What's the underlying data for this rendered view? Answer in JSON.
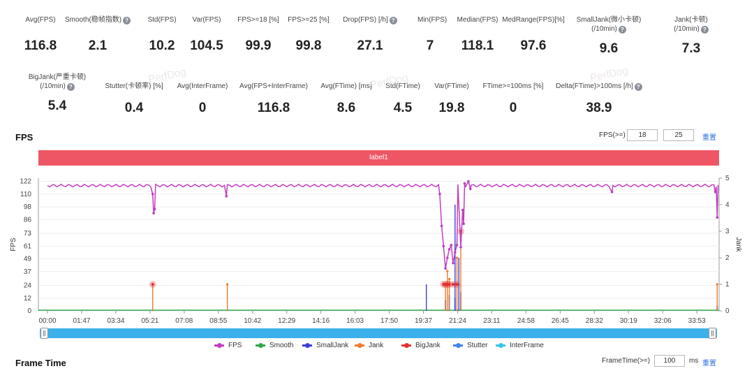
{
  "stats_row1": [
    {
      "label": "Avg(FPS)",
      "value": "116.8",
      "help": false
    },
    {
      "label": "Smooth(稳帧指数)",
      "value": "2.1",
      "help": true
    },
    {
      "label": "Std(FPS)",
      "value": "10.2",
      "help": false
    },
    {
      "label": "Var(FPS)",
      "value": "104.5",
      "help": false
    },
    {
      "label": "FPS>=18 [%]",
      "value": "99.9",
      "help": false
    },
    {
      "label": "FPS>=25 [%]",
      "value": "99.8",
      "help": false
    },
    {
      "label": "Drop(FPS) [/h]",
      "value": "27.1",
      "help": true
    },
    {
      "label": "Min(FPS)",
      "value": "7",
      "help": false
    },
    {
      "label": "Median(FPS)",
      "value": "118.1",
      "help": false
    },
    {
      "label": "MedRange(FPS)[%]",
      "value": "97.6",
      "help": false
    },
    {
      "label": "SmallJank(微小卡顿)",
      "label2": "(/10min)",
      "value": "9.6",
      "help": true
    },
    {
      "label": "Jank(卡顿)",
      "label2": "(/10min)",
      "value": "7.3",
      "help": true
    }
  ],
  "stats_row2": [
    {
      "label": "BigJank(严重卡顿)",
      "label2": "(/10min)",
      "value": "5.4",
      "help": true
    },
    {
      "label": "Stutter(卡顿率) [%]",
      "value": "0.4",
      "help": false
    },
    {
      "label": "Avg(InterFrame)",
      "value": "0",
      "help": false
    },
    {
      "label": "Avg(FPS+InterFrame)",
      "value": "116.8",
      "help": false
    },
    {
      "label": "Avg(FTime) [ms]",
      "value": "8.6",
      "help": false
    },
    {
      "label": "Std(FTime)",
      "value": "4.5",
      "help": false
    },
    {
      "label": "Var(FTime)",
      "value": "19.8",
      "help": false
    },
    {
      "label": "FTime>=100ms [%]",
      "value": "0",
      "help": false
    },
    {
      "label": "Delta(FTime)>100ms [/h]",
      "value": "38.9",
      "help": true
    }
  ],
  "help_glyph": "?",
  "fps_section": {
    "title": "FPS",
    "threshold_label": "FPS(>=)",
    "threshold1": "18",
    "threshold2": "25",
    "reset": "重置"
  },
  "label_bar": "label1",
  "watermark": "PerfDog",
  "frametime_section": {
    "title": "Frame Time",
    "label": "FrameTime(>=)",
    "value": "100",
    "unit": "ms",
    "reset": "重置"
  },
  "legend": [
    {
      "name": "FPS",
      "color": "#c13dc1"
    },
    {
      "name": "Smooth",
      "color": "#2ea84a"
    },
    {
      "name": "SmallJank",
      "color": "#3b3fd8"
    },
    {
      "name": "Jank",
      "color": "#f07a2a"
    },
    {
      "name": "BigJank",
      "color": "#e23030"
    },
    {
      "name": "Stutter",
      "color": "#3f86f2"
    },
    {
      "name": "InterFrame",
      "color": "#36c6e6"
    }
  ],
  "chart_data": {
    "type": "line",
    "ylabel": "FPS",
    "y2label": "Jank",
    "y_ticks": [
      0,
      12,
      24,
      37,
      49,
      61,
      73,
      86,
      98,
      110,
      122
    ],
    "y2_ticks": [
      0,
      1,
      2,
      3,
      4,
      5
    ],
    "x_ticks": [
      "00:00",
      "01:47",
      "03:34",
      "05:21",
      "07:08",
      "08:55",
      "10:42",
      "12:29",
      "14:16",
      "16:03",
      "17:50",
      "19:37",
      "21:24",
      "23:11",
      "24:58",
      "26:45",
      "28:32",
      "30:19",
      "32:06",
      "33:53"
    ],
    "series": [
      {
        "name": "FPS",
        "baseline": 118,
        "dips": [
          [
            5.5,
            110
          ],
          [
            5.55,
            92
          ],
          [
            5.6,
            96
          ],
          [
            9.35,
            108
          ],
          [
            20.5,
            110
          ],
          [
            20.6,
            80
          ],
          [
            20.7,
            61
          ],
          [
            20.8,
            40
          ],
          [
            20.9,
            50
          ],
          [
            21.0,
            58
          ],
          [
            21.1,
            62
          ],
          [
            21.2,
            45
          ],
          [
            21.3,
            55
          ],
          [
            21.4,
            62
          ],
          [
            21.6,
            60
          ],
          [
            21.7,
            95
          ],
          [
            21.75,
            82
          ],
          [
            21.8,
            120
          ],
          [
            22.0,
            122
          ],
          [
            22.1,
            115
          ],
          [
            29.5,
            112
          ],
          [
            34.9,
            112
          ],
          [
            35.0,
            88
          ]
        ]
      },
      {
        "name": "Smooth",
        "baseline": 0
      },
      {
        "name": "SmallJank",
        "spikes": [
          [
            19.8,
            1
          ],
          [
            21.3,
            4
          ],
          [
            21.5,
            2
          ]
        ]
      },
      {
        "name": "Jank",
        "spikes": [
          [
            5.5,
            1
          ],
          [
            9.4,
            1
          ],
          [
            20.8,
            1
          ],
          [
            20.9,
            1.5
          ],
          [
            21.0,
            1.2
          ],
          [
            21.4,
            2
          ],
          [
            21.6,
            3
          ],
          [
            35.0,
            1
          ]
        ]
      },
      {
        "name": "BigJank",
        "spikes": [
          [
            5.5,
            1
          ],
          [
            20.7,
            1
          ],
          [
            20.8,
            1
          ],
          [
            20.9,
            1
          ],
          [
            21.0,
            1
          ],
          [
            21.2,
            1
          ],
          [
            21.4,
            1
          ],
          [
            21.6,
            3
          ]
        ]
      },
      {
        "name": "Stutter",
        "spikes": [
          [
            20.8,
            0.4
          ],
          [
            21.0,
            0.6
          ],
          [
            21.3,
            0.5
          ],
          [
            21.6,
            0.7
          ],
          [
            35.0,
            0.2
          ]
        ]
      },
      {
        "name": "InterFrame",
        "baseline": 0
      }
    ]
  }
}
